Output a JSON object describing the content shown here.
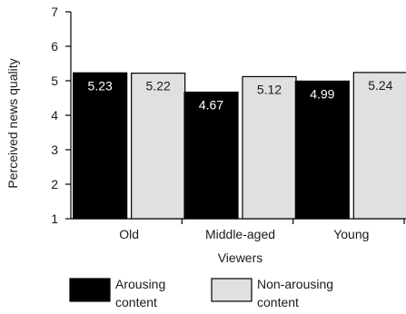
{
  "chart_data": {
    "type": "bar",
    "categories": [
      "Old",
      "Middle-aged",
      "Young"
    ],
    "series": [
      {
        "name": "Arousing\ncontent",
        "values": [
          5.23,
          4.67,
          4.99
        ],
        "color": "#000000",
        "label_color": "#ffffff"
      },
      {
        "name": "Non-arousing\ncontent",
        "values": [
          5.22,
          5.12,
          5.24
        ],
        "color": "#e0e0e0",
        "label_color": "#1a1a1a"
      }
    ],
    "data_labels": [
      [
        "5.23",
        "4.67",
        "4.99"
      ],
      [
        "5.22",
        "5.12",
        "5.24"
      ]
    ],
    "xlabel": "Viewers",
    "ylabel": "Perceived news quality",
    "ylim": [
      1,
      7
    ],
    "yticks": [
      1,
      2,
      3,
      4,
      5,
      6,
      7
    ],
    "grid": false,
    "legend_position": "bottom"
  }
}
